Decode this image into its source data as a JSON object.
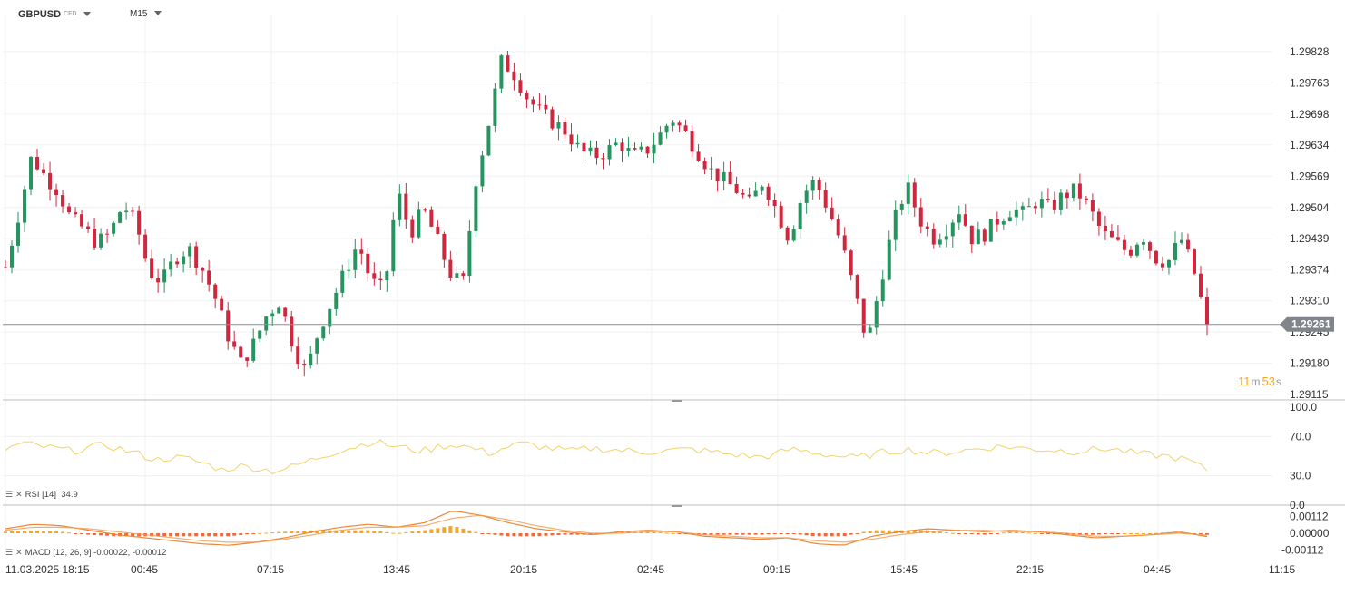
{
  "header": {
    "symbol": "GBPUSD",
    "instrument_type": "CFD",
    "timeframe": "M15"
  },
  "colors": {
    "bull": "#26945e",
    "bear": "#d0273f",
    "rsi_line": "#f3d36b",
    "macd_line": "#e8893a",
    "signal_line": "#f29a4a",
    "hist_pos": "#f5a623",
    "hist_neg": "#ee6a3a",
    "price_line": "#8a8f96",
    "price_tag_bg": "#7f858b"
  },
  "last_price": "1.29261",
  "timer": {
    "minutes": "11",
    "minutes_unit": "m",
    "seconds": "53",
    "seconds_unit": "s"
  },
  "rsi_label": {
    "name": "RSI",
    "params": "[14]",
    "value": "34.9"
  },
  "macd_label": {
    "name": "MACD",
    "params": "[12, 26, 9]",
    "values": "-0.00022, -0.00012"
  },
  "chart_data": [
    {
      "type": "candlestick",
      "title": "GBPUSD",
      "y_ticks": [
        "1.29828",
        "1.29763",
        "1.29698",
        "1.29634",
        "1.29569",
        "1.29504",
        "1.29439",
        "1.29374",
        "1.29310",
        "1.29245",
        "1.29180",
        "1.29115"
      ],
      "ylim": [
        1.29104,
        1.29888
      ],
      "x_ticks": [
        "11.03.2025  18:15",
        "00:45",
        "07:15",
        "13:45",
        "20:15",
        "02:45",
        "09:15",
        "15:45",
        "22:15",
        "04:45",
        "11:15"
      ],
      "last_price": 1.29261,
      "ohlc_anchor_closes": [
        1.2938,
        1.2949,
        1.2961,
        1.2957,
        1.2954,
        1.2948,
        1.2946,
        1.2943,
        1.2945,
        1.2951,
        1.2947,
        1.2937,
        1.2935,
        1.294,
        1.2942,
        1.2938,
        1.2932,
        1.2924,
        1.2918,
        1.2922,
        1.2928,
        1.2931,
        1.2922,
        1.2916,
        1.2925,
        1.2931,
        1.2937,
        1.2943,
        1.2935,
        1.2933,
        1.2954,
        1.2945,
        1.295,
        1.2944,
        1.2937,
        1.2934,
        1.2956,
        1.2968,
        1.2981,
        1.2978,
        1.2973,
        1.297,
        1.2968,
        1.2966,
        1.2962,
        1.2961,
        1.2962,
        1.2964,
        1.2961,
        1.2962,
        1.2965,
        1.2969,
        1.2966,
        1.2962,
        1.2958,
        1.2956,
        1.2954,
        1.2951,
        1.2956,
        1.295,
        1.2944,
        1.2953,
        1.2956,
        1.295,
        1.2943,
        1.2933,
        1.2922,
        1.2935,
        1.2947,
        1.2955,
        1.2948,
        1.2944,
        1.2946,
        1.295,
        1.2944,
        1.2945,
        1.2948,
        1.295,
        1.2949,
        1.2952,
        1.295,
        1.2953,
        1.2954,
        1.295,
        1.2945,
        1.2943,
        1.2941,
        1.2945,
        1.294,
        1.2939,
        1.2944,
        1.2937,
        1.2926
      ]
    },
    {
      "type": "line",
      "title": "RSI [14]",
      "y_ticks": [
        "100.0",
        "70.0",
        "30.0",
        "0.0"
      ],
      "ylim": [
        0,
        100
      ],
      "last_value": 34.9,
      "anchor_values": [
        57,
        63,
        60,
        58,
        55,
        59,
        61,
        57,
        52,
        46,
        49,
        47,
        42,
        36,
        40,
        38,
        35,
        38,
        44,
        50,
        56,
        60,
        65,
        61,
        58,
        55,
        60,
        62,
        58,
        53,
        59,
        63,
        60,
        57,
        55,
        58,
        57,
        56,
        54,
        55,
        56,
        57,
        55,
        53,
        51,
        49,
        51,
        57,
        55,
        52,
        50,
        48,
        52,
        55,
        57,
        54,
        53,
        55,
        57,
        59,
        60,
        58,
        57,
        56,
        55,
        56,
        58,
        55,
        52,
        51,
        49,
        45,
        34.9
      ]
    },
    {
      "type": "bar+line",
      "title": "MACD [12, 26, 9]",
      "y_ticks": [
        "0.00112",
        "0.00000",
        "-0.00112"
      ],
      "ylim": [
        -0.00175,
        0.00175
      ],
      "last_values": {
        "macd": -0.00022,
        "signal": -0.00012
      },
      "macd_anchor_values": [
        0.0003,
        0.0006,
        0.0005,
        0.0002,
        -0.0001,
        -0.0003,
        -0.0005,
        -0.0007,
        -0.0008,
        -0.0006,
        -0.0003,
        0.0001,
        0.0004,
        0.0006,
        0.0004,
        0.0007,
        0.0015,
        0.0012,
        0.0007,
        0.0003,
        0.0001,
        -0.0001,
        0.0001,
        0.0002,
        0.0001,
        -0.0002,
        -0.0003,
        -0.0004,
        -0.0003,
        -0.0007,
        -0.0008,
        -0.0002,
        0.0001,
        0.0003,
        0.0002,
        0.0001,
        0.0002,
        0.0001,
        -0.0001,
        -0.0003,
        -0.0002,
        -0.0001,
        0.0001,
        -0.00022
      ],
      "signal_anchor_values": [
        0.0002,
        0.0004,
        0.0004,
        0.0003,
        0.0001,
        -0.0001,
        -0.0003,
        -0.0005,
        -0.0006,
        -0.0006,
        -0.0004,
        -0.0001,
        0.0002,
        0.0004,
        0.0004,
        0.0005,
        0.001,
        0.0012,
        0.0009,
        0.0005,
        0.0002,
        0.0,
        0.0,
        0.0001,
        0.0001,
        -0.0001,
        -0.0002,
        -0.0003,
        -0.0003,
        -0.0005,
        -0.0006,
        -0.0004,
        -0.0001,
        0.0001,
        0.0002,
        0.0002,
        0.0001,
        0.0001,
        0.0,
        -0.0002,
        -0.0002,
        -0.0001,
        0.0,
        -0.00012
      ]
    }
  ]
}
